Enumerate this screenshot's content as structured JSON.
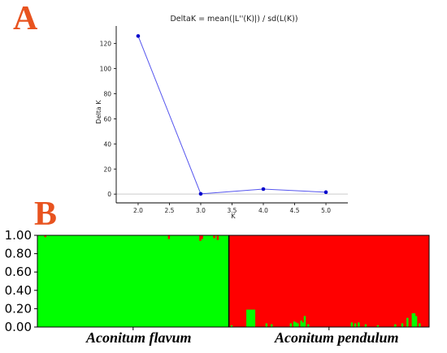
{
  "panels": {
    "a_letter": "A",
    "b_letter": "B",
    "letter_color": "#E8531F"
  },
  "chart_data": [
    {
      "type": "line",
      "title": "DeltaK = mean(|L''(K)|) / sd(L(K))",
      "xlabel": "K",
      "ylabel": "Delta K",
      "x": [
        2.0,
        3.0,
        4.0,
        5.0
      ],
      "values": [
        126,
        0.2,
        4,
        1.5
      ],
      "xlim": [
        1.65,
        5.35
      ],
      "ylim": [
        -7,
        134
      ],
      "xticks": [
        "2.0",
        "2.5",
        "3.0",
        "3.5",
        "4.0",
        "4.5",
        "5.0"
      ],
      "yticks": [
        "0",
        "20",
        "40",
        "60",
        "80",
        "100",
        "120"
      ],
      "line_color": "#5555EE",
      "marker_color": "#0000CC",
      "reference_line": 0,
      "reference_color": "#CCCCCC"
    },
    {
      "type": "bar",
      "subtype": "stacked-structure",
      "ylim": [
        0,
        1
      ],
      "yticks": [
        "0.00",
        "0.20",
        "0.40",
        "0.60",
        "0.80",
        "1.00"
      ],
      "series_colors": {
        "cluster1": "#00FF00",
        "cluster2": "#FF0000"
      },
      "groups": [
        {
          "name": "Aconitum flavum",
          "individuals": 110,
          "cluster1_fraction": 1.0,
          "deviations": [
            {
              "index": 4,
              "cluster2": 0.02
            },
            {
              "index": 75,
              "cluster2": 0.04
            },
            {
              "index": 93,
              "cluster2": 0.06
            },
            {
              "index": 94,
              "cluster2": 0.04
            },
            {
              "index": 101,
              "cluster2": 0.03
            },
            {
              "index": 103,
              "cluster2": 0.05
            }
          ]
        },
        {
          "name": "Aconitum pendulum",
          "individuals": 115,
          "cluster1_fraction": 0.0,
          "deviations": [
            {
              "index": 1,
              "cluster1": 0.02
            },
            {
              "index": 10,
              "cluster1": 0.19
            },
            {
              "index": 11,
              "cluster1": 0.19
            },
            {
              "index": 12,
              "cluster1": 0.19
            },
            {
              "index": 13,
              "cluster1": 0.19
            },
            {
              "index": 14,
              "cluster1": 0.19
            },
            {
              "index": 21,
              "cluster1": 0.04
            },
            {
              "index": 24,
              "cluster1": 0.03
            },
            {
              "index": 35,
              "cluster1": 0.04
            },
            {
              "index": 37,
              "cluster1": 0.06
            },
            {
              "index": 38,
              "cluster1": 0.05
            },
            {
              "index": 39,
              "cluster1": 0.04
            },
            {
              "index": 41,
              "cluster1": 0.07
            },
            {
              "index": 42,
              "cluster1": 0.05
            },
            {
              "index": 43,
              "cluster1": 0.12
            },
            {
              "index": 45,
              "cluster1": 0.03
            },
            {
              "index": 70,
              "cluster1": 0.05
            },
            {
              "index": 72,
              "cluster1": 0.04
            },
            {
              "index": 74,
              "cluster1": 0.05
            },
            {
              "index": 78,
              "cluster1": 0.03
            },
            {
              "index": 85,
              "cluster1": 0.02
            },
            {
              "index": 95,
              "cluster1": 0.03
            },
            {
              "index": 99,
              "cluster1": 0.04
            },
            {
              "index": 102,
              "cluster1": 0.1
            },
            {
              "index": 105,
              "cluster1": 0.15
            },
            {
              "index": 106,
              "cluster1": 0.15
            },
            {
              "index": 107,
              "cluster1": 0.12
            },
            {
              "index": 109,
              "cluster1": 0.04
            }
          ]
        }
      ]
    }
  ]
}
